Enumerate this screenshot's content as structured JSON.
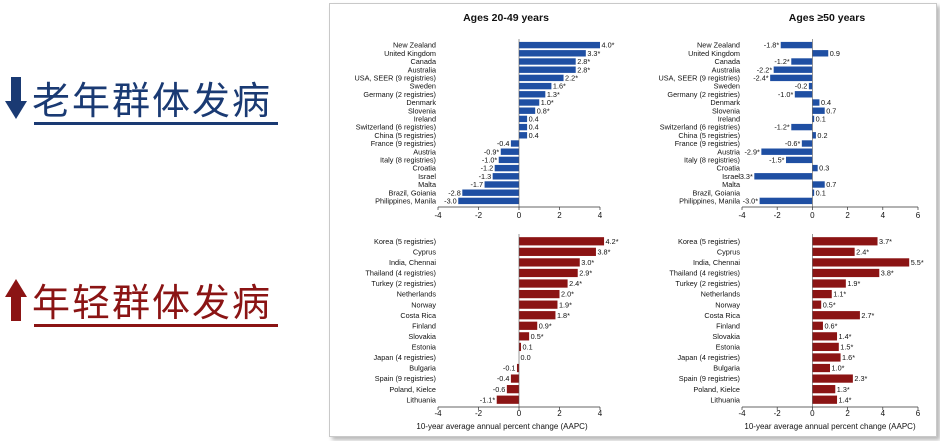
{
  "annotations": {
    "older": {
      "label": "老年群体发病",
      "color": "#1a3a73",
      "arrow": "down-arrow-icon"
    },
    "younger": {
      "label": "年轻群体发病",
      "color": "#8b1414",
      "arrow": "up-arrow-icon"
    }
  },
  "colors": {
    "older_series": "#1f4fa3",
    "younger_series": "#8b1414"
  },
  "chart_data": [
    {
      "type": "bar",
      "orientation": "horizontal",
      "title": "Ages 20-49 years",
      "xlim": [
        -4,
        4
      ],
      "xticks": [
        -4,
        -2,
        0,
        2,
        4
      ],
      "categories": [
        "New Zealand",
        "United Kingdom",
        "Canada",
        "Australia",
        "USA, SEER (9 registries)",
        "Sweden",
        "Germany (2 registries)",
        "Denmark",
        "Slovenia",
        "Ireland",
        "Switzerland (6 registries)",
        "China (5 registries)",
        "France (9 registries)",
        "Austria",
        "Italy (8 registries)",
        "Croatia",
        "Israel",
        "Malta",
        "Brazil, Goiania",
        "Philippines, Manila"
      ],
      "values": [
        4.0,
        3.3,
        2.8,
        2.8,
        2.2,
        1.6,
        1.3,
        1.0,
        0.8,
        0.4,
        0.4,
        0.4,
        -0.4,
        -0.9,
        -1.0,
        -1.2,
        -1.3,
        -1.7,
        -2.8,
        -3.0
      ],
      "labels": [
        "4.0*",
        "3.3*",
        "2.8*",
        "2.8*",
        "2.2*",
        "1.6*",
        "1.3*",
        "1.0*",
        "0.8*",
        "0.4",
        "0.4",
        "0.4",
        "-0.4",
        "-0.9*",
        "-1.0*",
        "-1.2",
        "-1.3",
        "-1.7",
        "-2.8",
        "-3.0"
      ]
    },
    {
      "type": "bar",
      "orientation": "horizontal",
      "title": "Ages ≥50 years",
      "xlim": [
        -4,
        6
      ],
      "xticks": [
        -4,
        -2,
        0,
        2,
        4,
        6
      ],
      "categories": [
        "New Zealand",
        "United Kingdom",
        "Canada",
        "Australia",
        "USA, SEER (9 registries)",
        "Sweden",
        "Germany (2 registries)",
        "Denmark",
        "Slovenia",
        "Ireland",
        "Switzerland (6 registries)",
        "China (5 registries)",
        "France (9 registries)",
        "Austria",
        "Italy (8 registries)",
        "Croatia",
        "Israel",
        "Malta",
        "Brazil, Goiania",
        "Philippines, Manila"
      ],
      "values": [
        -1.8,
        0.9,
        -1.2,
        -2.2,
        -2.4,
        -0.2,
        -1.0,
        0.4,
        0.7,
        0.1,
        -1.2,
        0.2,
        -0.6,
        -2.9,
        -1.5,
        0.3,
        -3.3,
        0.7,
        0.1,
        -3.0
      ],
      "labels": [
        "-1.8*",
        "0.9",
        "-1.2*",
        "-2.2*",
        "-2.4*",
        "-0.2",
        "-1.0*",
        "0.4",
        "0.7",
        "0.1",
        "-1.2*",
        "0.2",
        "-0.6*",
        "-2.9*",
        "-1.5*",
        "0.3",
        "-3.3*",
        "0.7",
        "0.1",
        "-3.0*"
      ]
    },
    {
      "type": "bar",
      "orientation": "horizontal",
      "xlim": [
        -4,
        4
      ],
      "xticks": [
        -4,
        -2,
        0,
        2,
        4
      ],
      "xlabel": "10-year average annual percent change (AAPC)",
      "categories": [
        "Korea (5 registries)",
        "Cyprus",
        "India, Chennai",
        "Thailand (4 registries)",
        "Turkey (2 registries)",
        "Netherlands",
        "Norway",
        "Costa Rica",
        "Finland",
        "Slovakia",
        "Estonia",
        "Japan (4 registries)",
        "Bulgaria",
        "Spain (9 registries)",
        "Poland, Kielce",
        "Lithuania"
      ],
      "values": [
        4.2,
        3.8,
        3.0,
        2.9,
        2.4,
        2.0,
        1.9,
        1.8,
        0.9,
        0.5,
        0.1,
        0.0,
        -0.1,
        -0.4,
        -0.6,
        -1.1
      ],
      "labels": [
        "4.2*",
        "3.8*",
        "3.0*",
        "2.9*",
        "2.4*",
        "2.0*",
        "1.9*",
        "1.8*",
        "0.9*",
        "0.5*",
        "0.1",
        "0.0",
        "-0.1",
        "-0.4",
        "-0.6",
        "-1.1*"
      ]
    },
    {
      "type": "bar",
      "orientation": "horizontal",
      "xlim": [
        -4,
        6
      ],
      "xticks": [
        -4,
        -2,
        0,
        2,
        4,
        6
      ],
      "xlabel": "10-year average annual percent change (AAPC)",
      "categories": [
        "Korea (5 registries)",
        "Cyprus",
        "India, Chennai",
        "Thailand (4 registries)",
        "Turkey (2 registries)",
        "Netherlands",
        "Norway",
        "Costa Rica",
        "Finland",
        "Slovakia",
        "Estonia",
        "Japan (4 registries)",
        "Bulgaria",
        "Spain (9 registries)",
        "Poland, Kielce",
        "Lithuania"
      ],
      "values": [
        3.7,
        2.4,
        5.5,
        3.8,
        1.9,
        1.1,
        0.5,
        2.7,
        0.6,
        1.4,
        1.5,
        1.6,
        1.0,
        2.3,
        1.3,
        1.4
      ],
      "labels": [
        "3.7*",
        "2.4*",
        "5.5*",
        "3.8*",
        "1.9*",
        "1.1*",
        "0.5*",
        "2.7*",
        "0.6*",
        "1.4*",
        "1.5*",
        "1.6*",
        "1.0*",
        "2.3*",
        "1.3*",
        "1.4*"
      ]
    }
  ]
}
